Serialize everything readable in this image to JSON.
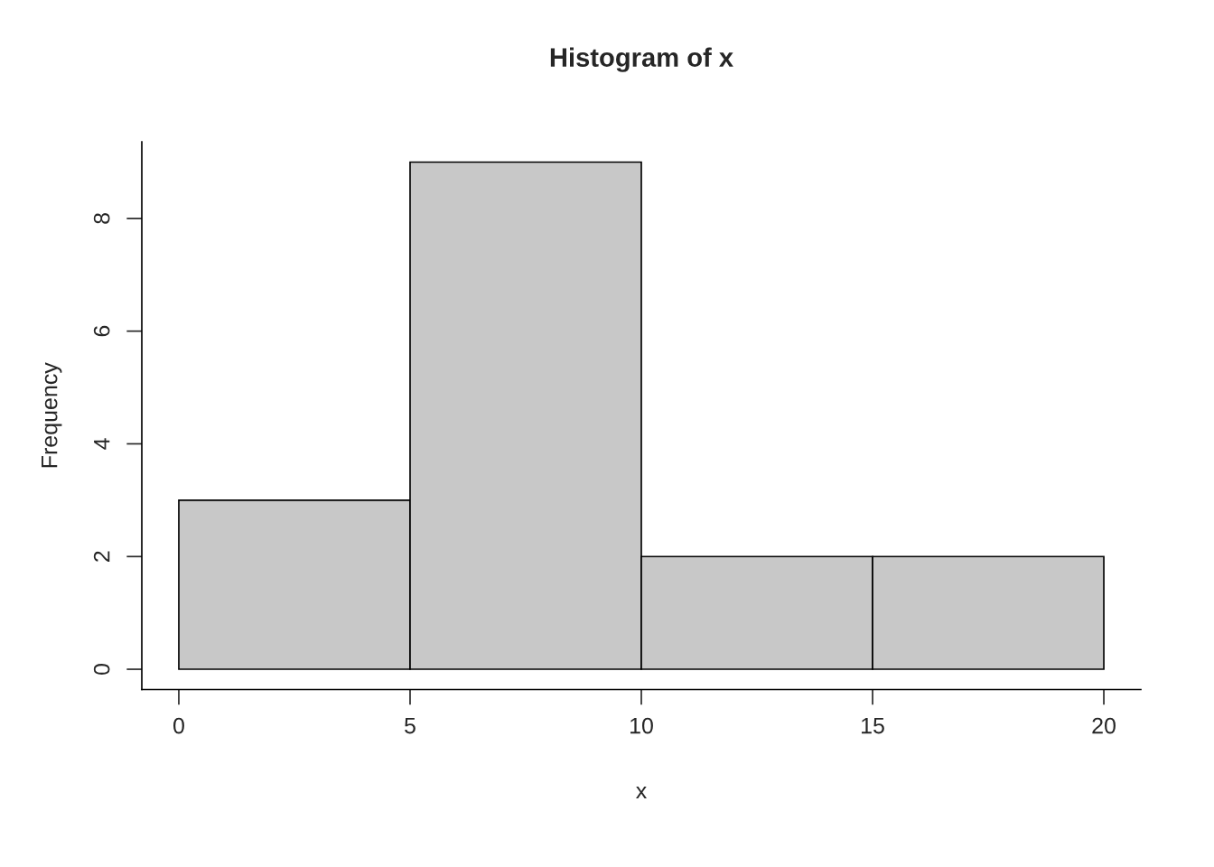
{
  "chart_data": {
    "type": "histogram",
    "title": "Histogram of x",
    "xlabel": "x",
    "ylabel": "Frequency",
    "bins": [
      0,
      5,
      10,
      15,
      20
    ],
    "values": [
      3,
      9,
      2,
      2
    ],
    "color": "#c8c8c8",
    "xlim": [
      -0.8,
      20.8
    ],
    "ylim": [
      -0.36,
      9.36
    ],
    "xticks": [
      0,
      5,
      10,
      15,
      20
    ],
    "yticks": [
      0,
      2,
      4,
      6,
      8
    ],
    "grid": false
  }
}
